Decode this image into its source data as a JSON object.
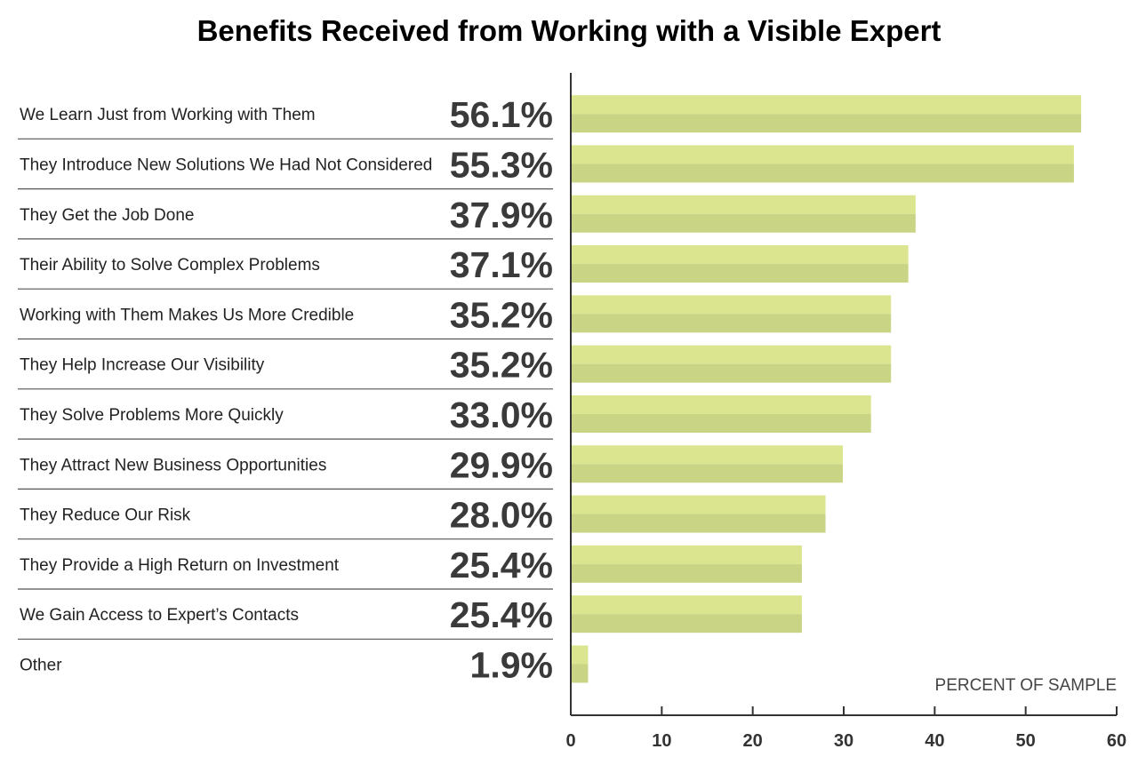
{
  "chart_data": {
    "type": "bar",
    "orientation": "horizontal",
    "title": "Benefits Received from Working with a Visible Expert",
    "xlabel": "PERCENT OF SAMPLE",
    "ylabel": "",
    "xlim": [
      0,
      60
    ],
    "xticks": [
      0,
      10,
      20,
      30,
      40,
      50,
      60
    ],
    "categories": [
      "We Learn Just from Working with Them",
      "They Introduce New Solutions We Had Not Considered",
      "They Get the Job Done",
      "Their Ability to Solve Complex Problems",
      "Working with Them Makes Us More Credible",
      "They Help Increase Our Visibility",
      "They Solve Problems More Quickly",
      "They Attract New Business Opportunities",
      "They Reduce Our Risk",
      "They Provide a High Return on Investment",
      "We Gain Access to Expert’s Contacts",
      "Other"
    ],
    "values": [
      56.1,
      55.3,
      37.9,
      37.1,
      35.2,
      35.2,
      33.0,
      29.9,
      28.0,
      25.4,
      25.4,
      1.9
    ],
    "value_labels": [
      "56.1%",
      "55.3%",
      "37.9%",
      "37.1%",
      "35.2%",
      "35.2%",
      "33.0%",
      "29.9%",
      "28.0%",
      "25.4%",
      "25.4%",
      "1.9%"
    ],
    "grid": false,
    "legend": "none",
    "colors": {
      "bar_top": "#dbe58f",
      "bar_bottom": "#c9d485",
      "axis": "#333333",
      "separator": "#555555"
    }
  }
}
